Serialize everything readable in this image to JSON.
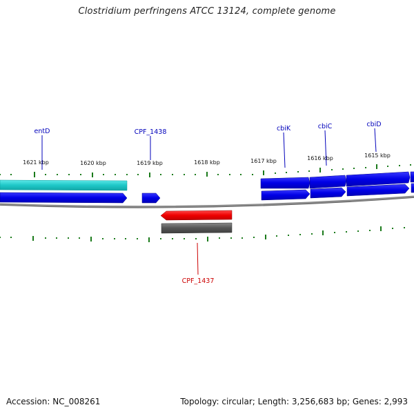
{
  "title": "Clostridium perfringens ATCC 13124, complete genome",
  "footer": {
    "accession": "Accession: NC_008261",
    "info": "Topology: circular; Length: 3,256,683 bp; Genes: 2,993"
  },
  "ticks": {
    "labels": [
      "1621 kbp",
      "1620 kbp",
      "1619 kbp",
      "1618 kbp",
      "1617 kbp",
      "1616 kbp",
      "1615 kbp"
    ]
  },
  "genes": [
    {
      "name": "entD",
      "strand": "forward"
    },
    {
      "name": "CPF_1438",
      "strand": "forward"
    },
    {
      "name": "cbiK",
      "strand": "forward"
    },
    {
      "name": "cbiC",
      "strand": "forward"
    },
    {
      "name": "cbiD",
      "strand": "forward"
    },
    {
      "name": "CPF_1437",
      "strand": "reverse"
    }
  ],
  "colors": {
    "forward_cds": "#0000ee",
    "forward_gene_row": "#0a1ad6",
    "reverse_cds": "#ee0000",
    "reverse_gene_row": "#5a5a5a",
    "other_feature": "#1ec8c8",
    "backbone": "#8a8a8a",
    "tick": "#1a7a1a",
    "forward_label": "#0000bb",
    "reverse_label": "#cc0000"
  }
}
